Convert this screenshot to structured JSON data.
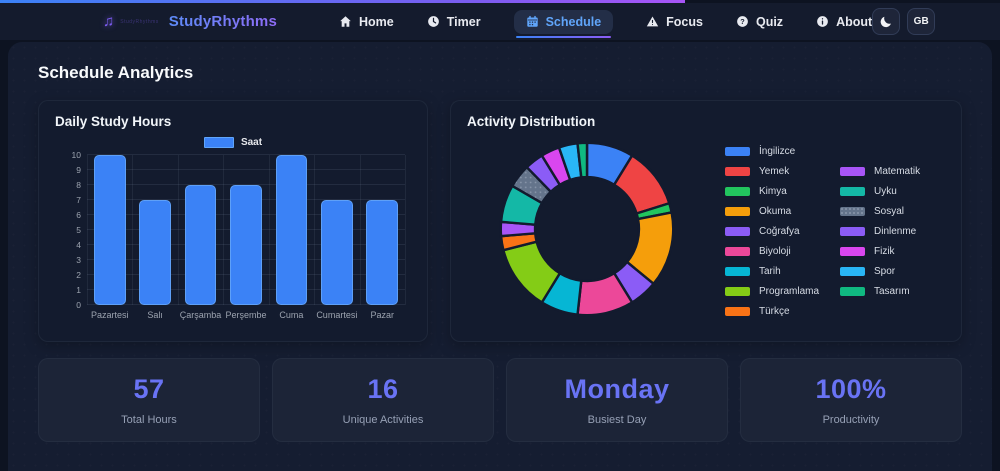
{
  "header": {
    "brand": "StudyRhythms",
    "nav": [
      {
        "label": "Home",
        "icon": "home-icon",
        "active": false
      },
      {
        "label": "Timer",
        "icon": "clock-icon",
        "active": false
      },
      {
        "label": "Schedule",
        "icon": "calendar-icon",
        "active": true
      },
      {
        "label": "Focus",
        "icon": "focus-icon",
        "active": false
      },
      {
        "label": "Quiz",
        "icon": "question-icon",
        "active": false
      },
      {
        "label": "About",
        "icon": "info-icon",
        "active": false
      }
    ],
    "theme_toggle_icon": "moon-icon",
    "language_label": "GB",
    "accent_gradient": [
      "#3b82f6",
      "#a855f7"
    ]
  },
  "page": {
    "title": "Schedule Analytics"
  },
  "chart_data": [
    {
      "type": "bar",
      "title": "Daily Study Hours",
      "series": [
        {
          "name": "Saat",
          "values": [
            10,
            7,
            8,
            8,
            10,
            7,
            7
          ]
        }
      ],
      "categories": [
        "Pazartesi",
        "Salı",
        "Çarşamba",
        "Perşembe",
        "Cuma",
        "Cumartesi",
        "Pazar"
      ],
      "ylim": [
        0,
        10
      ],
      "ytick_step": 1,
      "grid": true,
      "legend_position": "top",
      "bar_color": "#3b82f6",
      "bar_border_color": "#5ea0f8"
    },
    {
      "type": "pie",
      "title": "Activity Distribution",
      "style": "doughnut",
      "legend_position": "right",
      "legend_columns": 2,
      "segments": [
        {
          "label": "İngilizce",
          "value": 5,
          "color": "#3b82f6"
        },
        {
          "label": "Yemek",
          "value": 6.5,
          "color": "#ef4444"
        },
        {
          "label": "Kimya",
          "value": 1,
          "color": "#22c55e"
        },
        {
          "label": "Okuma",
          "value": 8,
          "color": "#f59e0b"
        },
        {
          "label": "Coğrafya",
          "value": 3,
          "color": "#8b5cf6"
        },
        {
          "label": "Biyoloji",
          "value": 6,
          "color": "#ec4899"
        },
        {
          "label": "Tarih",
          "value": 4,
          "color": "#06b6d4"
        },
        {
          "label": "Programlama",
          "value": 7,
          "color": "#84cc16"
        },
        {
          "label": "Türkçe",
          "value": 1.5,
          "color": "#f97316"
        },
        {
          "label": "Matematik",
          "value": 1.5,
          "color": "#a855f7"
        },
        {
          "label": "Uyku",
          "value": 4,
          "color": "#14b8a6"
        },
        {
          "label": "Sosyal",
          "value": 2.5,
          "color": "#64748b",
          "pattern": "dots"
        },
        {
          "label": "Dinlenme",
          "value": 2,
          "color": "#8b5cf6"
        },
        {
          "label": "Fizik",
          "value": 2,
          "color": "#d946ef"
        },
        {
          "label": "Spor",
          "value": 2,
          "color": "#29b6f6"
        },
        {
          "label": "Tasarım",
          "value": 1,
          "color": "#10b981"
        }
      ]
    }
  ],
  "stats": [
    {
      "value": "57",
      "label": "Total Hours"
    },
    {
      "value": "16",
      "label": "Unique Activities"
    },
    {
      "value": "Monday",
      "label": "Busiest Day"
    },
    {
      "value": "100%",
      "label": "Productivity"
    }
  ]
}
